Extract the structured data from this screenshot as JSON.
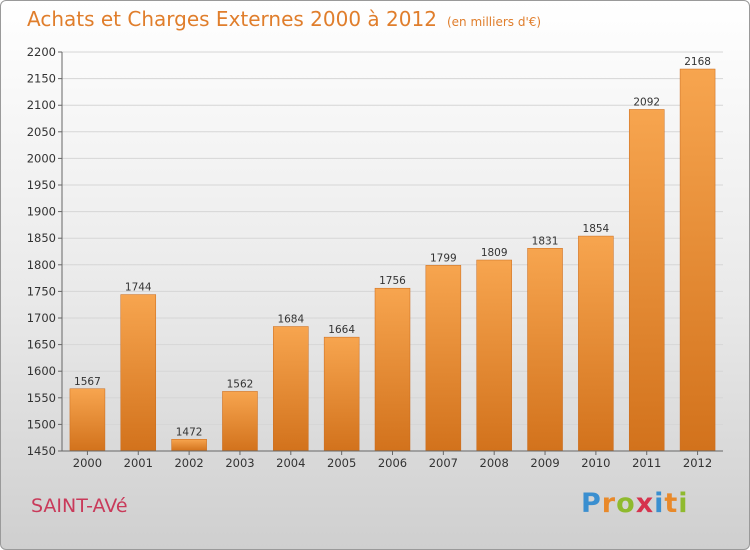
{
  "title": "Achats et Charges Externes 2000 à 2012",
  "subtitle": "(en milliers d'€)",
  "commune": "SAINT-AVé",
  "brand": {
    "text": "Proxiti",
    "letters": [
      {
        "char": "P",
        "color": "#3a8fd0"
      },
      {
        "char": "r",
        "color": "#e8892a"
      },
      {
        "char": "o",
        "color": "#8fba2e"
      },
      {
        "char": "x",
        "color": "#d6334d"
      },
      {
        "char": "i",
        "color": "#3a8fd0"
      },
      {
        "char": "t",
        "color": "#e8892a"
      },
      {
        "char": "i",
        "color": "#8fba2e"
      }
    ]
  },
  "colors": {
    "bar_light": "#f7a54f",
    "bar_dark": "#d2721c",
    "title": "#e07e2c",
    "commune": "#c93a5a"
  },
  "chart_data": {
    "type": "bar",
    "title": "Achats et Charges Externes 2000 à 2012",
    "subtitle": "(en milliers d'€)",
    "xlabel": "",
    "ylabel": "",
    "categories": [
      "2000",
      "2001",
      "2002",
      "2003",
      "2004",
      "2005",
      "2006",
      "2007",
      "2008",
      "2009",
      "2010",
      "2011",
      "2012"
    ],
    "values": [
      1567,
      1744,
      1472,
      1562,
      1684,
      1664,
      1756,
      1799,
      1809,
      1831,
      1854,
      2092,
      2168
    ],
    "ylim": [
      1450,
      2200
    ],
    "yticks": [
      1450,
      1500,
      1550,
      1600,
      1650,
      1700,
      1750,
      1800,
      1850,
      1900,
      1950,
      2000,
      2050,
      2100,
      2150,
      2200
    ],
    "grid": true,
    "data_labels": true
  }
}
